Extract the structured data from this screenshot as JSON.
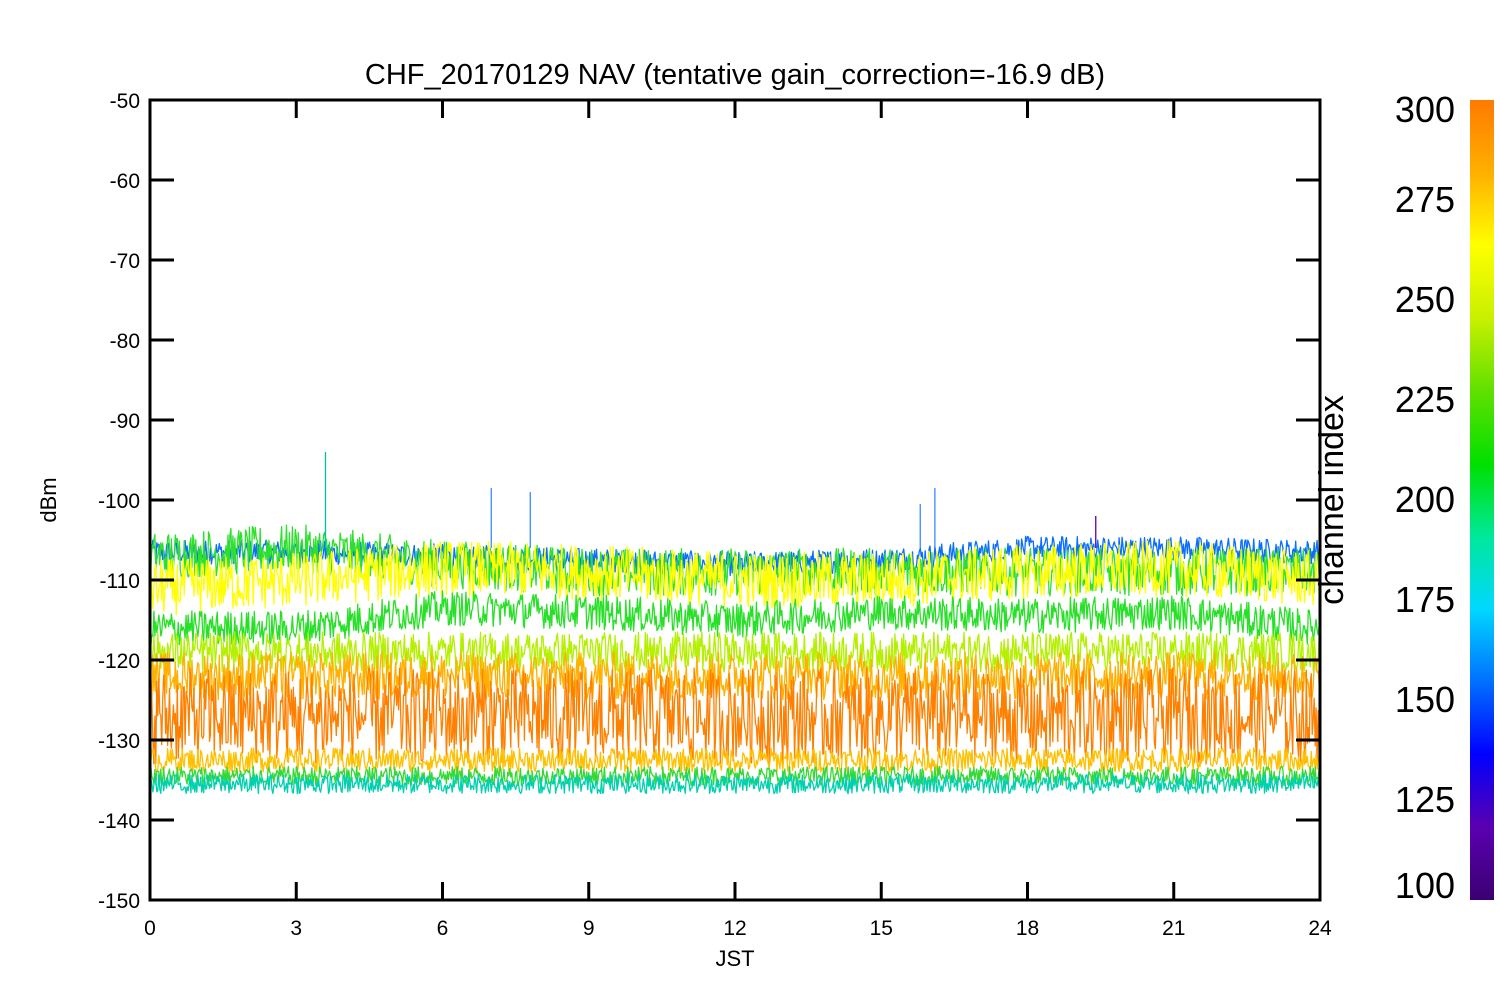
{
  "chart_data": {
    "type": "line",
    "title": "CHF_20170129 NAV (tentative gain_correction=-16.9 dB)",
    "xlabel": "JST",
    "ylabel": "dBm",
    "xlim": [
      0,
      24
    ],
    "ylim": [
      -150,
      -50
    ],
    "x_ticks": [
      "0",
      "3",
      "6",
      "9",
      "12",
      "15",
      "18",
      "21",
      "24"
    ],
    "y_ticks": [
      "-50",
      "-60",
      "-70",
      "-80",
      "-90",
      "-100",
      "-110",
      "-120",
      "-130",
      "-140",
      "-150"
    ],
    "colorbar": {
      "label": "channel index",
      "range": [
        100,
        300
      ],
      "ticks": [
        "300",
        "275",
        "250",
        "225",
        "200",
        "175",
        "150",
        "125",
        "100"
      ],
      "colormap": [
        "#3b0072",
        "#5a00b0",
        "#0000ff",
        "#0070ff",
        "#00d8ff",
        "#00e89a",
        "#00e000",
        "#60e000",
        "#c8f000",
        "#ffff00",
        "#ffb000",
        "#ff7a00"
      ]
    },
    "bands": [
      {
        "channel": 160,
        "color": "#0a6eff",
        "y_center": [
          -106.5,
          -106.5,
          -107,
          -107.5,
          -108,
          -107.5,
          -106,
          -106,
          -106.5
        ],
        "x": [
          0,
          3,
          6,
          9,
          12,
          15,
          18,
          21,
          24
        ],
        "spread": 1.5
      },
      {
        "channel": 215,
        "color": "#2ee02e",
        "y_center": [
          -107,
          -106,
          -108,
          -109,
          -109,
          -109,
          -109,
          -109,
          -109
        ],
        "x": [
          0,
          3,
          6,
          9,
          12,
          15,
          18,
          21,
          24
        ],
        "spread": 3
      },
      {
        "channel": 275,
        "color": "#ffff00",
        "y_center": [
          -111,
          -110,
          -108.5,
          -109,
          -110,
          -110,
          -109,
          -108.5,
          -110
        ],
        "x": [
          0,
          3,
          6,
          9,
          12,
          15,
          18,
          21,
          24
        ],
        "spread": 3.5
      },
      {
        "channel": 235,
        "color": "#28e028",
        "y_center": [
          -116,
          -116,
          -113.5,
          -114,
          -115,
          -114,
          -114.5,
          -114,
          -116
        ],
        "x": [
          0,
          3,
          6,
          9,
          12,
          15,
          18,
          21,
          24
        ],
        "spread": 2.2
      },
      {
        "channel": 258,
        "color": "#b4f000",
        "y_center": [
          -119,
          -119,
          -119,
          -119,
          -119,
          -119,
          -119,
          -119,
          -119
        ],
        "x": [
          0,
          3,
          6,
          9,
          12,
          15,
          18,
          21,
          24
        ],
        "spread": 2.5
      },
      {
        "channel": 285,
        "color": "#ffb000",
        "y_center": [
          -122,
          -122,
          -122,
          -122,
          -122,
          -122,
          -122,
          -122,
          -122
        ],
        "x": [
          0,
          3,
          6,
          9,
          12,
          15,
          18,
          21,
          24
        ],
        "spread": 3
      },
      {
        "channel": 295,
        "color": "#ff8000",
        "y_center": [
          -127,
          -127,
          -127,
          -127,
          -127,
          -127,
          -127,
          -127,
          -127
        ],
        "x": [
          0,
          3,
          6,
          9,
          12,
          15,
          18,
          21,
          24
        ],
        "spread": 6
      },
      {
        "channel": 280,
        "color": "#ffc000",
        "y_center": [
          -132.5,
          -132.5,
          -132.5,
          -132.5,
          -132.5,
          -132.5,
          -132.5,
          -132.5,
          -132.5
        ],
        "x": [
          0,
          3,
          6,
          9,
          12,
          15,
          18,
          21,
          24
        ],
        "spread": 1.5
      },
      {
        "channel": 230,
        "color": "#36d836",
        "y_center": [
          -134.5,
          -134.5,
          -134.5,
          -134.5,
          -134.5,
          -134.5,
          -134.5,
          -134.5,
          -134.5
        ],
        "x": [
          0,
          3,
          6,
          9,
          12,
          15,
          18,
          21,
          24
        ],
        "spread": 1.2
      },
      {
        "channel": 185,
        "color": "#00d0b0",
        "y_center": [
          -135.5,
          -135.5,
          -135.5,
          -135.5,
          -135.5,
          -135.5,
          -135.5,
          -135.5,
          -135.5
        ],
        "x": [
          0,
          3,
          6,
          9,
          12,
          15,
          18,
          21,
          24
        ],
        "spread": 1.2
      }
    ],
    "spikes": [
      {
        "x": 3.6,
        "y": -94,
        "color": "#00c0a0"
      },
      {
        "x": 7.0,
        "y": -98.5,
        "color": "#3a8aff"
      },
      {
        "x": 7.8,
        "y": -99,
        "color": "#3a8aff"
      },
      {
        "x": 15.8,
        "y": -100.5,
        "color": "#3a8aff"
      },
      {
        "x": 16.1,
        "y": -98.5,
        "color": "#3a8aff"
      },
      {
        "x": 19.4,
        "y": -102,
        "color": "#5a00b0"
      }
    ]
  }
}
